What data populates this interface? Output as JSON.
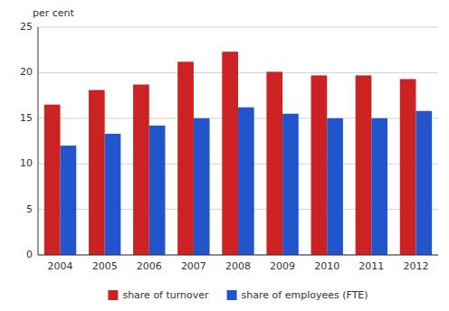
{
  "chart_data": {
    "type": "bar",
    "ylabel": "per cent",
    "categories": [
      "2004",
      "2005",
      "2006",
      "2007",
      "2008",
      "2009",
      "2010",
      "2011",
      "2012"
    ],
    "series": [
      {
        "name": "share of turnover",
        "color": "#cc2222",
        "values": [
          16.5,
          18.1,
          18.7,
          21.2,
          22.3,
          20.1,
          19.7,
          19.7,
          19.3
        ]
      },
      {
        "name": "share of employees (FTE)",
        "color": "#2255cc",
        "values": [
          12.0,
          13.3,
          14.2,
          15.0,
          16.2,
          15.5,
          15.0,
          15.0,
          15.8
        ]
      }
    ],
    "ylim": [
      0,
      25
    ],
    "yticks": [
      0,
      5,
      10,
      15,
      20,
      25
    ],
    "grid": true,
    "legend": "bottom"
  }
}
